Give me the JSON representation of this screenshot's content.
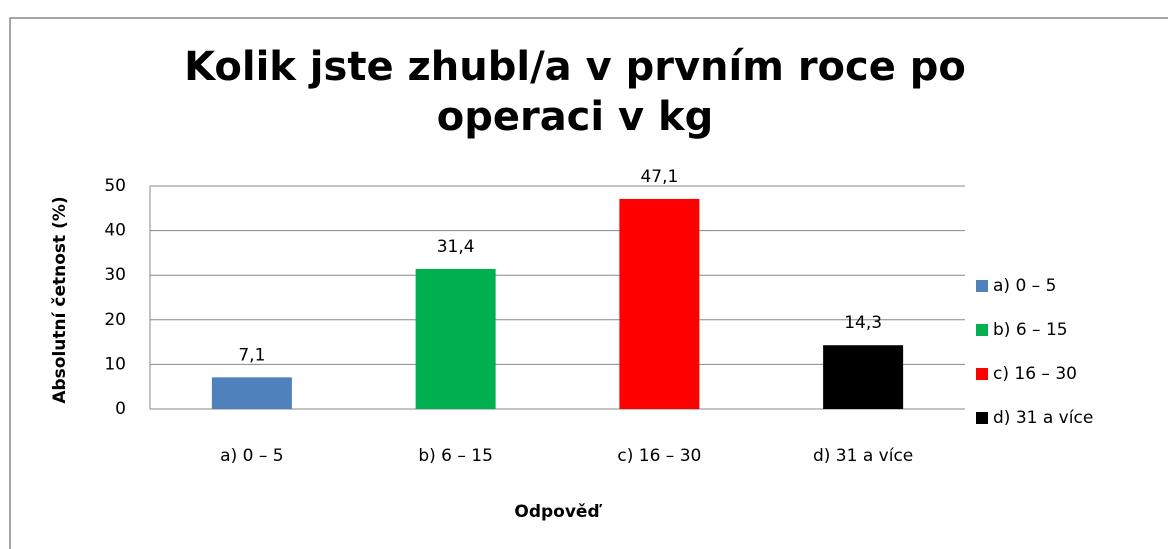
{
  "chart_data": {
    "type": "bar",
    "title": "Kolik jste zhubl/a v prvním roce po operaci v kg",
    "categories": [
      "a) 0 –  5",
      "b) 6 – 15",
      "c) 16 – 30",
      "d) 31 a více"
    ],
    "values": [
      7.1,
      31.4,
      47.1,
      14.3
    ],
    "value_labels": [
      "7,1",
      "31,4",
      "47,1",
      "14,3"
    ],
    "colors": [
      "#4f81bd",
      "#00b050",
      "#ff0000",
      "#000000"
    ],
    "xlabel": "Odpověď",
    "ylabel": "Absolutní četnost (%)",
    "ylim": [
      0,
      50
    ],
    "yticks": [
      0,
      10,
      20,
      30,
      40,
      50
    ],
    "grid": true,
    "legend": "right"
  }
}
